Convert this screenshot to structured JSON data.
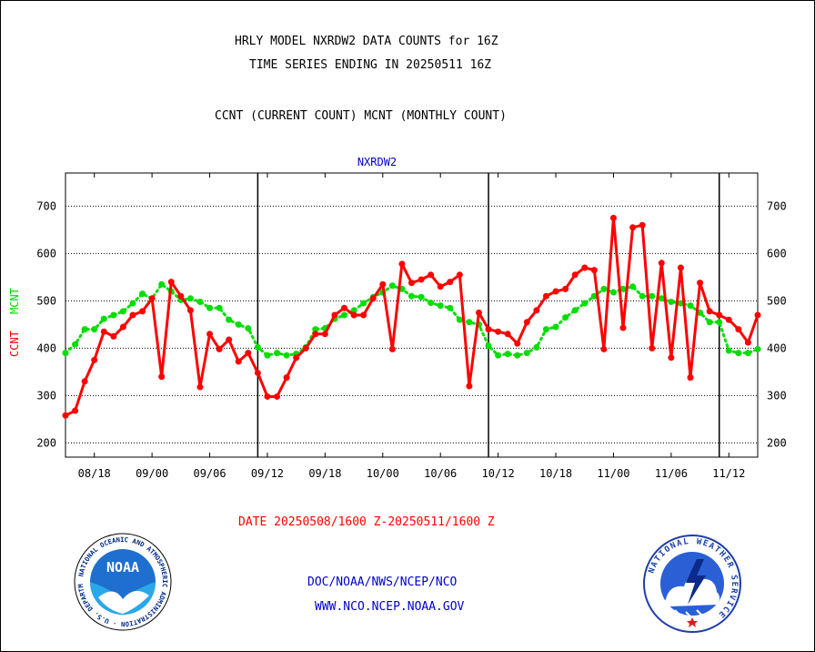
{
  "header": {
    "line1": "HRLY MODEL NXRDW2 DATA COUNTS for 16Z",
    "line2": "TIME SERIES ENDING IN 20250511 16Z",
    "line3": "CCNT (CURRENT COUNT) MCNT (MONTHLY COUNT)"
  },
  "footer": {
    "date_range": "DATE 20250508/1600 Z-20250511/1600 Z",
    "org": "DOC/NOAA/NWS/NCEP/NCO",
    "url": "WWW.NCO.NCEP.NOAA.GOV"
  },
  "logos": {
    "noaa_text": "NOAA",
    "noaa_ring": "NATIONAL OCEANIC AND ATMOSPHERIC ADMINISTRATION · U.S. DEPARTMENT OF COMMERCE ·",
    "nws_ring": "NATIONAL WEATHER SERVICE"
  },
  "colors": {
    "ccnt": "#ff0000",
    "mcnt": "#00dd00",
    "title": "#0000cc"
  },
  "chart_data": {
    "type": "line",
    "title": "NXRDW2",
    "ylabel_left_ccnt": "CCNT",
    "ylabel_left_mcnt": "MCNT",
    "ylim": [
      170,
      770
    ],
    "yticks": [
      200,
      300,
      400,
      500,
      600,
      700
    ],
    "xlim": [
      0,
      72
    ],
    "xticks": [
      {
        "x": 3,
        "label": "08/18"
      },
      {
        "x": 9,
        "label": "09/00"
      },
      {
        "x": 15,
        "label": "09/06"
      },
      {
        "x": 21,
        "label": "09/12"
      },
      {
        "x": 27,
        "label": "09/18"
      },
      {
        "x": 33,
        "label": "10/00"
      },
      {
        "x": 39,
        "label": "10/06"
      },
      {
        "x": 45,
        "label": "10/12"
      },
      {
        "x": 51,
        "label": "10/18"
      },
      {
        "x": 57,
        "label": "11/00"
      },
      {
        "x": 63,
        "label": "11/06"
      },
      {
        "x": 69,
        "label": "11/12"
      }
    ],
    "day_boundaries": [
      20,
      44,
      68
    ],
    "grid": true,
    "series": [
      {
        "name": "CCNT",
        "values": [
          258,
          268,
          330,
          375,
          435,
          425,
          445,
          470,
          478,
          505,
          340,
          540,
          510,
          480,
          318,
          430,
          398,
          418,
          372,
          390,
          348,
          298,
          298,
          338,
          380,
          400,
          430,
          430,
          470,
          485,
          470,
          470,
          505,
          535,
          398,
          578,
          538,
          545,
          555,
          530,
          540,
          555,
          320,
          475,
          440,
          435,
          430,
          410,
          455,
          480,
          510,
          520,
          525,
          555,
          570,
          565,
          398,
          675,
          443,
          655,
          660,
          400,
          580,
          380,
          570,
          338,
          538,
          478,
          470,
          460,
          440,
          412,
          470
        ]
      },
      {
        "name": "MCNT",
        "values": [
          390,
          408,
          440,
          440,
          462,
          470,
          478,
          495,
          515,
          505,
          535,
          520,
          502,
          505,
          498,
          485,
          485,
          460,
          450,
          442,
          402,
          385,
          390,
          385,
          388,
          402,
          440,
          442,
          462,
          470,
          480,
          495,
          508,
          518,
          532,
          525,
          510,
          508,
          496,
          490,
          485,
          460,
          455,
          450,
          405,
          385,
          388,
          385,
          390,
          402,
          440,
          445,
          465,
          480,
          495,
          510,
          525,
          518,
          525,
          530,
          510,
          510,
          505,
          498,
          495,
          490,
          475,
          455,
          455,
          395,
          390,
          390,
          398
        ]
      }
    ]
  }
}
